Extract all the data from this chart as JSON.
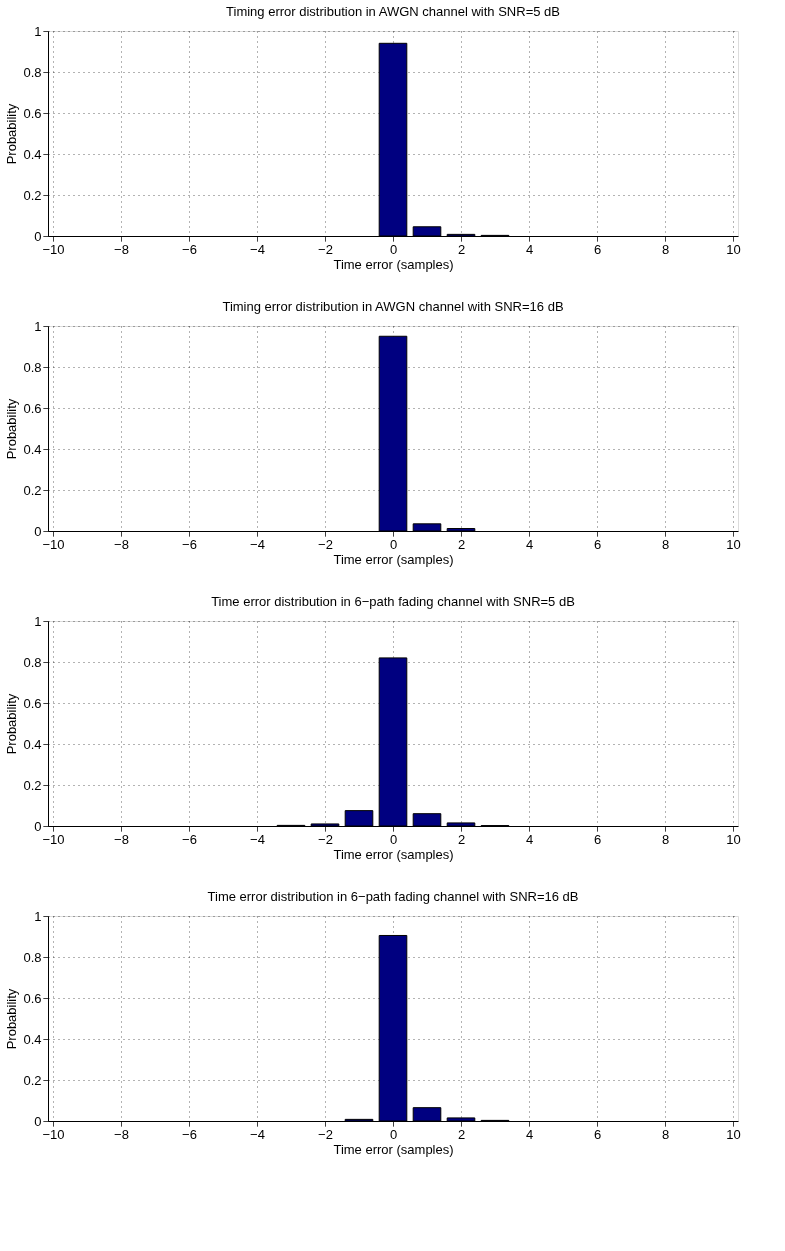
{
  "chart_data": [
    {
      "type": "bar",
      "title": "Timing error distribution in AWGN channel with SNR=5 dB",
      "xlabel": "Time error (samples)",
      "ylabel": "Probability",
      "x": [
        0,
        1,
        2,
        3
      ],
      "values": [
        0.94,
        0.045,
        0.008,
        0.003
      ],
      "color": "#000080",
      "xlim": [
        -10,
        10
      ],
      "xticks": [
        -10,
        -8,
        -6,
        -4,
        -2,
        0,
        2,
        4,
        6,
        8,
        10
      ],
      "ylim": [
        0,
        1
      ],
      "yticks": [
        0,
        0.2,
        0.4,
        0.6,
        0.8,
        1
      ],
      "grid": true
    },
    {
      "type": "bar",
      "title": "Timing error distribution in AWGN channel with SNR=16 dB",
      "xlabel": "Time error (samples)",
      "ylabel": "Probability",
      "x": [
        0,
        1,
        2
      ],
      "values": [
        0.95,
        0.035,
        0.012
      ],
      "color": "#000080",
      "xlim": [
        -10,
        10
      ],
      "xticks": [
        -10,
        -8,
        -6,
        -4,
        -2,
        0,
        2,
        4,
        6,
        8,
        10
      ],
      "ylim": [
        0,
        1
      ],
      "yticks": [
        0,
        0.2,
        0.4,
        0.6,
        0.8,
        1
      ],
      "grid": true
    },
    {
      "type": "bar",
      "title": "Time error distribution in 6−path fading channel with SNR=5 dB",
      "xlabel": "Time error (samples)",
      "ylabel": "Probability",
      "x": [
        -3,
        -2,
        -1,
        0,
        1,
        2,
        3
      ],
      "values": [
        0.003,
        0.01,
        0.075,
        0.82,
        0.06,
        0.015,
        0.002
      ],
      "color": "#000080",
      "xlim": [
        -10,
        10
      ],
      "xticks": [
        -10,
        -8,
        -6,
        -4,
        -2,
        0,
        2,
        4,
        6,
        8,
        10
      ],
      "ylim": [
        0,
        1
      ],
      "yticks": [
        0,
        0.2,
        0.4,
        0.6,
        0.8,
        1
      ],
      "grid": true
    },
    {
      "type": "bar",
      "title": "Time error distribution in 6−path fading channel with SNR=16 dB",
      "xlabel": "Time error (samples)",
      "ylabel": "Probability",
      "x": [
        -1,
        0,
        1,
        2,
        3
      ],
      "values": [
        0.008,
        0.905,
        0.065,
        0.015,
        0.003
      ],
      "color": "#000080",
      "xlim": [
        -10,
        10
      ],
      "xticks": [
        -10,
        -8,
        -6,
        -4,
        -2,
        0,
        2,
        4,
        6,
        8,
        10
      ],
      "ylim": [
        0,
        1
      ],
      "yticks": [
        0,
        0.2,
        0.4,
        0.6,
        0.8,
        1
      ],
      "grid": true
    }
  ]
}
